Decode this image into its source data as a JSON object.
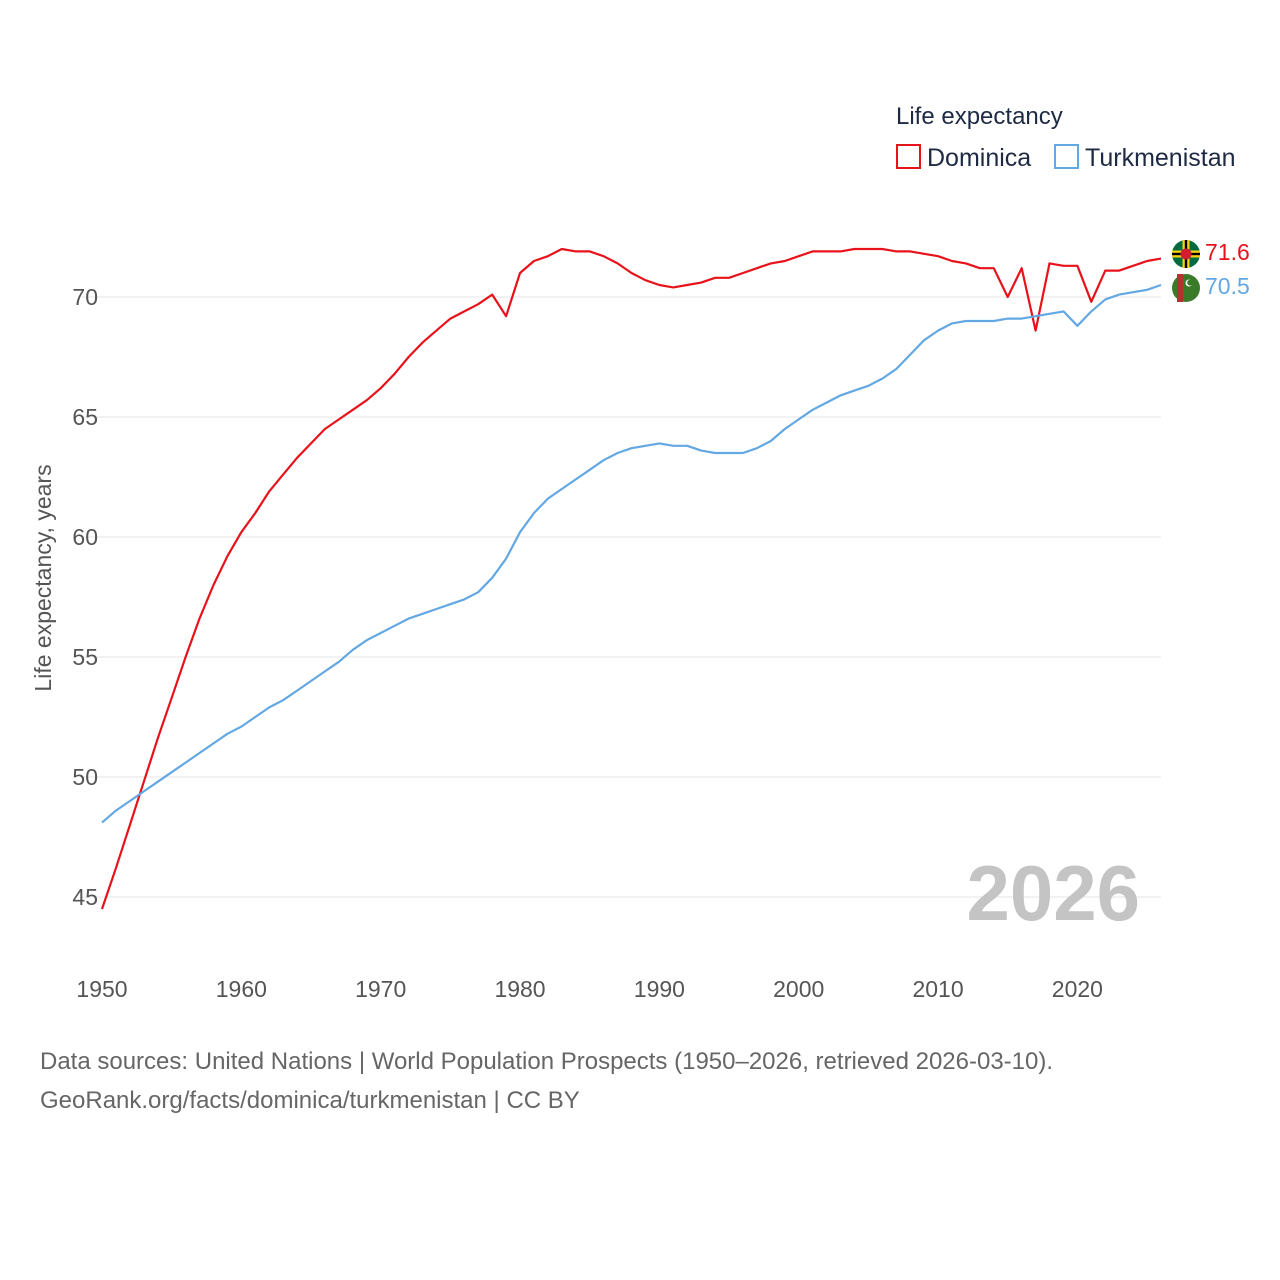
{
  "chart_data": {
    "type": "line",
    "ylabel": "Life expectancy, years",
    "xlabel": "",
    "xlim": [
      1950,
      2026
    ],
    "ylim": [
      44,
      73
    ],
    "x_ticks": [
      1950,
      1960,
      1970,
      1980,
      1990,
      2000,
      2010,
      2020
    ],
    "y_ticks": [
      45,
      50,
      55,
      60,
      65,
      70
    ],
    "legend_title": "Life expectancy",
    "current_year": "2026",
    "series": [
      {
        "name": "Dominica",
        "color": "#e8121a",
        "end_value": "71.6",
        "points": [
          [
            1950,
            44.5
          ],
          [
            1951,
            46.2
          ],
          [
            1952,
            48.0
          ],
          [
            1953,
            49.8
          ],
          [
            1954,
            51.6
          ],
          [
            1955,
            53.3
          ],
          [
            1956,
            55.0
          ],
          [
            1957,
            56.6
          ],
          [
            1958,
            58.0
          ],
          [
            1959,
            59.2
          ],
          [
            1960,
            60.2
          ],
          [
            1961,
            61.0
          ],
          [
            1962,
            61.9
          ],
          [
            1963,
            62.6
          ],
          [
            1964,
            63.3
          ],
          [
            1965,
            63.9
          ],
          [
            1966,
            64.5
          ],
          [
            1967,
            64.9
          ],
          [
            1968,
            65.3
          ],
          [
            1969,
            65.7
          ],
          [
            1970,
            66.2
          ],
          [
            1971,
            66.8
          ],
          [
            1972,
            67.5
          ],
          [
            1973,
            68.1
          ],
          [
            1974,
            68.6
          ],
          [
            1975,
            69.1
          ],
          [
            1976,
            69.4
          ],
          [
            1977,
            69.7
          ],
          [
            1978,
            70.1
          ],
          [
            1979,
            69.2
          ],
          [
            1980,
            71.0
          ],
          [
            1981,
            71.5
          ],
          [
            1982,
            71.7
          ],
          [
            1983,
            72.0
          ],
          [
            1984,
            71.9
          ],
          [
            1985,
            71.9
          ],
          [
            1986,
            71.7
          ],
          [
            1987,
            71.4
          ],
          [
            1988,
            71.0
          ],
          [
            1989,
            70.7
          ],
          [
            1990,
            70.5
          ],
          [
            1991,
            70.4
          ],
          [
            1992,
            70.5
          ],
          [
            1993,
            70.6
          ],
          [
            1994,
            70.8
          ],
          [
            1995,
            70.8
          ],
          [
            1996,
            71.0
          ],
          [
            1997,
            71.2
          ],
          [
            1998,
            71.4
          ],
          [
            1999,
            71.5
          ],
          [
            2000,
            71.7
          ],
          [
            2001,
            71.9
          ],
          [
            2002,
            71.9
          ],
          [
            2003,
            71.9
          ],
          [
            2004,
            72.0
          ],
          [
            2005,
            72.0
          ],
          [
            2006,
            72.0
          ],
          [
            2007,
            71.9
          ],
          [
            2008,
            71.9
          ],
          [
            2009,
            71.8
          ],
          [
            2010,
            71.7
          ],
          [
            2011,
            71.5
          ],
          [
            2012,
            71.4
          ],
          [
            2013,
            71.2
          ],
          [
            2014,
            71.2
          ],
          [
            2015,
            70.0
          ],
          [
            2016,
            71.2
          ],
          [
            2017,
            68.6
          ],
          [
            2018,
            71.4
          ],
          [
            2019,
            71.3
          ],
          [
            2020,
            71.3
          ],
          [
            2021,
            69.8
          ],
          [
            2022,
            71.1
          ],
          [
            2023,
            71.1
          ],
          [
            2024,
            71.3
          ],
          [
            2025,
            71.5
          ],
          [
            2026,
            71.6
          ]
        ]
      },
      {
        "name": "Turkmenistan",
        "color": "#63a8e3",
        "end_value": "70.5",
        "points": [
          [
            1950,
            48.1
          ],
          [
            1951,
            48.6
          ],
          [
            1952,
            49.0
          ],
          [
            1953,
            49.4
          ],
          [
            1954,
            49.8
          ],
          [
            1955,
            50.2
          ],
          [
            1956,
            50.6
          ],
          [
            1957,
            51.0
          ],
          [
            1958,
            51.4
          ],
          [
            1959,
            51.8
          ],
          [
            1960,
            52.1
          ],
          [
            1961,
            52.5
          ],
          [
            1962,
            52.9
          ],
          [
            1963,
            53.2
          ],
          [
            1964,
            53.6
          ],
          [
            1965,
            54.0
          ],
          [
            1966,
            54.4
          ],
          [
            1967,
            54.8
          ],
          [
            1968,
            55.3
          ],
          [
            1969,
            55.7
          ],
          [
            1970,
            56.0
          ],
          [
            1971,
            56.3
          ],
          [
            1972,
            56.6
          ],
          [
            1973,
            56.8
          ],
          [
            1974,
            57.0
          ],
          [
            1975,
            57.2
          ],
          [
            1976,
            57.4
          ],
          [
            1977,
            57.7
          ],
          [
            1978,
            58.3
          ],
          [
            1979,
            59.1
          ],
          [
            1980,
            60.2
          ],
          [
            1981,
            61.0
          ],
          [
            1982,
            61.6
          ],
          [
            1983,
            62.0
          ],
          [
            1984,
            62.4
          ],
          [
            1985,
            62.8
          ],
          [
            1986,
            63.2
          ],
          [
            1987,
            63.5
          ],
          [
            1988,
            63.7
          ],
          [
            1989,
            63.8
          ],
          [
            1990,
            63.9
          ],
          [
            1991,
            63.8
          ],
          [
            1992,
            63.8
          ],
          [
            1993,
            63.6
          ],
          [
            1994,
            63.5
          ],
          [
            1995,
            63.5
          ],
          [
            1996,
            63.5
          ],
          [
            1997,
            63.7
          ],
          [
            1998,
            64.0
          ],
          [
            1999,
            64.5
          ],
          [
            2000,
            64.9
          ],
          [
            2001,
            65.3
          ],
          [
            2002,
            65.6
          ],
          [
            2003,
            65.9
          ],
          [
            2004,
            66.1
          ],
          [
            2005,
            66.3
          ],
          [
            2006,
            66.6
          ],
          [
            2007,
            67.0
          ],
          [
            2008,
            67.6
          ],
          [
            2009,
            68.2
          ],
          [
            2010,
            68.6
          ],
          [
            2011,
            68.9
          ],
          [
            2012,
            69.0
          ],
          [
            2013,
            69.0
          ],
          [
            2014,
            69.0
          ],
          [
            2015,
            69.1
          ],
          [
            2016,
            69.1
          ],
          [
            2017,
            69.2
          ],
          [
            2018,
            69.3
          ],
          [
            2019,
            69.4
          ],
          [
            2020,
            68.8
          ],
          [
            2021,
            69.4
          ],
          [
            2022,
            69.9
          ],
          [
            2023,
            70.1
          ],
          [
            2024,
            70.2
          ],
          [
            2025,
            70.3
          ],
          [
            2026,
            70.5
          ]
        ]
      }
    ]
  },
  "footer": {
    "sources": "Data sources: United Nations | World Population Prospects (1950–2026, retrieved 2026-03-10).",
    "attribution": "GeoRank.org/facts/dominica/turkmenistan | CC BY"
  }
}
